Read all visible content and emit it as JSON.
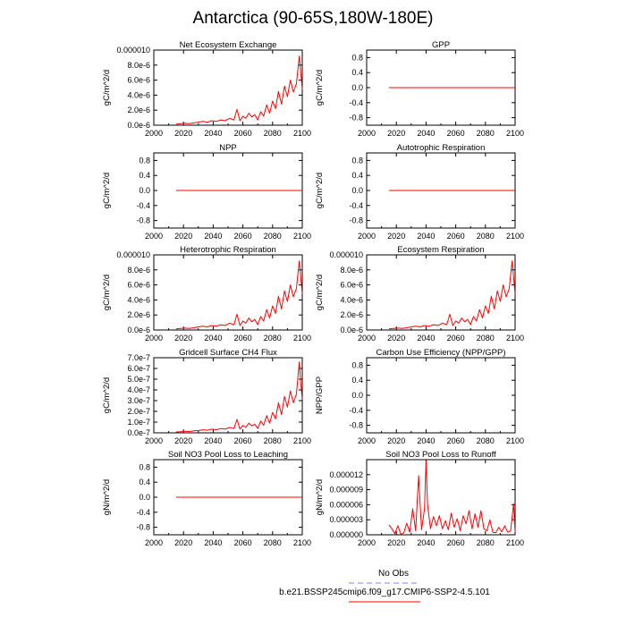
{
  "title": "Antarctica (90-65S,180W-180E)",
  "legend": {
    "obs_label": "No Obs",
    "obs_color": "#8080ff",
    "run_label": "b.e21.BSSP245cmip6.f09_g17.CMIP6-SSP2-4.5.101",
    "run_color": "#ff0000"
  },
  "chart_data": [
    {
      "type": "line",
      "title": "Net Ecosystem Exchange",
      "ylabel": "gC/m^2/d",
      "xlim": [
        2000,
        2100
      ],
      "xticks": [
        "2000",
        "2020",
        "2040",
        "2060",
        "2080",
        "2100"
      ],
      "ylim": [
        0,
        1e-05
      ],
      "yticks": [
        {
          "v": 0,
          "l": "0.0e-6"
        },
        {
          "v": 2e-06,
          "l": "2.0e-6"
        },
        {
          "v": 4e-06,
          "l": "4.0e-6"
        },
        {
          "v": 6e-06,
          "l": "6.0e-6"
        },
        {
          "v": 8e-06,
          "l": "8.0e-6"
        },
        {
          "v": 1e-05,
          "l": "0.000010"
        }
      ],
      "series": [
        {
          "name": "b.e21.BSSP245cmip6.f09_g17.CMIP6-SSP2-4.5.101",
          "x": [
            2015,
            2018,
            2021,
            2024,
            2027,
            2030,
            2033,
            2036,
            2039,
            2042,
            2045,
            2048,
            2051,
            2054,
            2056,
            2058,
            2060,
            2062,
            2064,
            2066,
            2068,
            2070,
            2072,
            2074,
            2076,
            2078,
            2080,
            2082,
            2084,
            2086,
            2088,
            2090,
            2092,
            2094,
            2096,
            2098,
            2099,
            2100
          ],
          "y": [
            1.5e-07,
            2e-07,
            2.5e-07,
            2e-07,
            3e-07,
            4e-07,
            5e-07,
            4e-07,
            6e-07,
            5e-07,
            7e-07,
            6e-07,
            9e-07,
            7e-07,
            2.1e-06,
            6e-07,
            1.2e-06,
            9e-07,
            1.6e-06,
            1.1e-06,
            1.4e-06,
            7e-07,
            1.8e-06,
            1.2e-06,
            2.7e-06,
            1.6e-06,
            3.2e-06,
            2.2e-06,
            4.5e-06,
            2.8e-06,
            5.2e-06,
            3.8e-06,
            6e-06,
            4.4e-06,
            5.5e-06,
            9.2e-06,
            7e-06,
            4.8e-06
          ]
        }
      ]
    },
    {
      "type": "line",
      "title": "GPP",
      "ylabel": "gC/m^2/d",
      "xlim": [
        2000,
        2100
      ],
      "xticks": [
        "2000",
        "2020",
        "2040",
        "2060",
        "2080",
        "2100"
      ],
      "ylim": [
        -1,
        1
      ],
      "yticks": [
        {
          "v": -0.8,
          "l": "-0.8"
        },
        {
          "v": -0.4,
          "l": "-0.4"
        },
        {
          "v": 0,
          "l": "0.0"
        },
        {
          "v": 0.4,
          "l": "0.4"
        },
        {
          "v": 0.8,
          "l": "0.8"
        }
      ],
      "series": [
        {
          "name": "b.e21.BSSP245cmip6.f09_g17.CMIP6-SSP2-4.5.101",
          "x": [
            2015,
            2100
          ],
          "y": [
            0,
            0
          ]
        }
      ]
    },
    {
      "type": "line",
      "title": "NPP",
      "ylabel": "gC/m^2/d",
      "xlim": [
        2000,
        2100
      ],
      "xticks": [
        "2000",
        "2020",
        "2040",
        "2060",
        "2080",
        "2100"
      ],
      "ylim": [
        -1,
        1
      ],
      "yticks": [
        {
          "v": -0.8,
          "l": "-0.8"
        },
        {
          "v": -0.4,
          "l": "-0.4"
        },
        {
          "v": 0,
          "l": "0.0"
        },
        {
          "v": 0.4,
          "l": "0.4"
        },
        {
          "v": 0.8,
          "l": "0.8"
        }
      ],
      "series": [
        {
          "name": "b.e21.BSSP245cmip6.f09_g17.CMIP6-SSP2-4.5.101",
          "x": [
            2015,
            2100
          ],
          "y": [
            0,
            0
          ]
        }
      ]
    },
    {
      "type": "line",
      "title": "Autotrophic Respiration",
      "ylabel": "gC/m^2/d",
      "xlim": [
        2000,
        2100
      ],
      "xticks": [
        "2000",
        "2020",
        "2040",
        "2060",
        "2080",
        "2100"
      ],
      "ylim": [
        -1,
        1
      ],
      "yticks": [
        {
          "v": -0.8,
          "l": "-0.8"
        },
        {
          "v": -0.4,
          "l": "-0.4"
        },
        {
          "v": 0,
          "l": "0.0"
        },
        {
          "v": 0.4,
          "l": "0.4"
        },
        {
          "v": 0.8,
          "l": "0.8"
        }
      ],
      "series": [
        {
          "name": "b.e21.BSSP245cmip6.f09_g17.CMIP6-SSP2-4.5.101",
          "x": [
            2015,
            2100
          ],
          "y": [
            0,
            0
          ]
        }
      ]
    },
    {
      "type": "line",
      "title": "Heterotrophic Respiration",
      "ylabel": "gC/m^2/d",
      "xlim": [
        2000,
        2100
      ],
      "xticks": [
        "2000",
        "2020",
        "2040",
        "2060",
        "2080",
        "2100"
      ],
      "ylim": [
        0,
        1e-05
      ],
      "yticks": [
        {
          "v": 0,
          "l": "0.0e-6"
        },
        {
          "v": 2e-06,
          "l": "2.0e-6"
        },
        {
          "v": 4e-06,
          "l": "4.0e-6"
        },
        {
          "v": 6e-06,
          "l": "6.0e-6"
        },
        {
          "v": 8e-06,
          "l": "8.0e-6"
        },
        {
          "v": 1e-05,
          "l": "0.000010"
        }
      ],
      "series": [
        {
          "name": "b.e21.BSSP245cmip6.f09_g17.CMIP6-SSP2-4.5.101",
          "x": [
            2015,
            2018,
            2021,
            2024,
            2027,
            2030,
            2033,
            2036,
            2039,
            2042,
            2045,
            2048,
            2051,
            2054,
            2056,
            2058,
            2060,
            2062,
            2064,
            2066,
            2068,
            2070,
            2072,
            2074,
            2076,
            2078,
            2080,
            2082,
            2084,
            2086,
            2088,
            2090,
            2092,
            2094,
            2096,
            2098,
            2099,
            2100
          ],
          "y": [
            1.5e-07,
            2e-07,
            2.5e-07,
            2e-07,
            3e-07,
            4e-07,
            5e-07,
            4e-07,
            6e-07,
            5e-07,
            7e-07,
            6e-07,
            9e-07,
            7e-07,
            2.1e-06,
            6e-07,
            1.2e-06,
            9e-07,
            1.6e-06,
            1.1e-06,
            1.4e-06,
            7e-07,
            1.8e-06,
            1.2e-06,
            2.7e-06,
            1.6e-06,
            3.2e-06,
            2.2e-06,
            4.5e-06,
            2.8e-06,
            5.2e-06,
            3.8e-06,
            6e-06,
            4.4e-06,
            5.5e-06,
            9.2e-06,
            7e-06,
            4.8e-06
          ]
        }
      ]
    },
    {
      "type": "line",
      "title": "Ecosystem Respiration",
      "ylabel": "gC/m^2/d",
      "xlim": [
        2000,
        2100
      ],
      "xticks": [
        "2000",
        "2020",
        "2040",
        "2060",
        "2080",
        "2100"
      ],
      "ylim": [
        0,
        1e-05
      ],
      "yticks": [
        {
          "v": 0,
          "l": "0.0e-6"
        },
        {
          "v": 2e-06,
          "l": "2.0e-6"
        },
        {
          "v": 4e-06,
          "l": "4.0e-6"
        },
        {
          "v": 6e-06,
          "l": "6.0e-6"
        },
        {
          "v": 8e-06,
          "l": "8.0e-6"
        },
        {
          "v": 1e-05,
          "l": "0.000010"
        }
      ],
      "series": [
        {
          "name": "b.e21.BSSP245cmip6.f09_g17.CMIP6-SSP2-4.5.101",
          "x": [
            2015,
            2018,
            2021,
            2024,
            2027,
            2030,
            2033,
            2036,
            2039,
            2042,
            2045,
            2048,
            2051,
            2054,
            2056,
            2058,
            2060,
            2062,
            2064,
            2066,
            2068,
            2070,
            2072,
            2074,
            2076,
            2078,
            2080,
            2082,
            2084,
            2086,
            2088,
            2090,
            2092,
            2094,
            2096,
            2098,
            2099,
            2100
          ],
          "y": [
            1.5e-07,
            2e-07,
            2.5e-07,
            2e-07,
            3e-07,
            4e-07,
            5e-07,
            4e-07,
            6e-07,
            5e-07,
            7e-07,
            6e-07,
            9e-07,
            7e-07,
            2.1e-06,
            6e-07,
            1.2e-06,
            9e-07,
            1.6e-06,
            1.1e-06,
            1.4e-06,
            7e-07,
            1.8e-06,
            1.2e-06,
            2.7e-06,
            1.6e-06,
            3.2e-06,
            2.2e-06,
            4.5e-06,
            2.8e-06,
            5.2e-06,
            3.8e-06,
            6e-06,
            4.4e-06,
            5.5e-06,
            9.2e-06,
            7e-06,
            4.8e-06
          ]
        }
      ]
    },
    {
      "type": "line",
      "title": "Gridcell Surface CH4 Flux",
      "ylabel": "gC/m^2/d",
      "xlim": [
        2000,
        2100
      ],
      "xticks": [
        "2000",
        "2020",
        "2040",
        "2060",
        "2080",
        "2100"
      ],
      "ylim": [
        0,
        7e-07
      ],
      "yticks": [
        {
          "v": 0,
          "l": "0.0e-7"
        },
        {
          "v": 1e-07,
          "l": "1.0e-7"
        },
        {
          "v": 2e-07,
          "l": "2.0e-7"
        },
        {
          "v": 3e-07,
          "l": "3.0e-7"
        },
        {
          "v": 4e-07,
          "l": "4.0e-7"
        },
        {
          "v": 5e-07,
          "l": "5.0e-7"
        },
        {
          "v": 6e-07,
          "l": "6.0e-7"
        },
        {
          "v": 7e-07,
          "l": "7.0e-7"
        }
      ],
      "series": [
        {
          "name": "b.e21.BSSP245cmip6.f09_g17.CMIP6-SSP2-4.5.101",
          "x": [
            2015,
            2018,
            2021,
            2024,
            2027,
            2030,
            2033,
            2036,
            2039,
            2042,
            2045,
            2048,
            2051,
            2054,
            2056,
            2058,
            2060,
            2062,
            2064,
            2066,
            2068,
            2070,
            2072,
            2074,
            2076,
            2078,
            2080,
            2082,
            2084,
            2086,
            2088,
            2090,
            2092,
            2094,
            2096,
            2098,
            2099,
            2100
          ],
          "y": [
            8e-09,
            1e-08,
            1.4e-08,
            1.2e-08,
            1.8e-08,
            2.2e-08,
            2.8e-08,
            2.4e-08,
            3.4e-08,
            2.8e-08,
            4e-08,
            3.4e-08,
            5e-08,
            4e-08,
            1.25e-07,
            3.5e-08,
            7e-08,
            5e-08,
            9e-08,
            6.5e-08,
            8e-08,
            4e-08,
            1.1e-07,
            7e-08,
            1.6e-07,
            9e-08,
            1.9e-07,
            1.3e-07,
            2.8e-07,
            1.7e-07,
            3.4e-07,
            2.4e-07,
            3.9e-07,
            2.8e-07,
            3.6e-07,
            6.6e-07,
            4.6e-07,
            3.1e-07
          ]
        }
      ]
    },
    {
      "type": "line",
      "title": "Carbon Use Efficiency (NPP/GPP)",
      "ylabel": "NPP/GPP",
      "xlim": [
        2000,
        2100
      ],
      "xticks": [
        "2000",
        "2020",
        "2040",
        "2060",
        "2080",
        "2100"
      ],
      "ylim": [
        -1,
        1
      ],
      "yticks": [
        {
          "v": -0.8,
          "l": "-0.8"
        },
        {
          "v": -0.4,
          "l": "-0.4"
        },
        {
          "v": 0,
          "l": "0.0"
        },
        {
          "v": 0.4,
          "l": "0.4"
        },
        {
          "v": 0.8,
          "l": "0.8"
        }
      ],
      "series": []
    },
    {
      "type": "line",
      "title": "Soil NO3 Pool Loss to Leaching",
      "ylabel": "gN/m^2/d",
      "xlim": [
        2000,
        2100
      ],
      "xticks": [
        "2000",
        "2020",
        "2040",
        "2060",
        "2080",
        "2100"
      ],
      "ylim": [
        -1,
        1
      ],
      "yticks": [
        {
          "v": -0.8,
          "l": "-0.8"
        },
        {
          "v": -0.4,
          "l": "-0.4"
        },
        {
          "v": 0,
          "l": "0.0"
        },
        {
          "v": 0.4,
          "l": "0.4"
        },
        {
          "v": 0.8,
          "l": "0.8"
        }
      ],
      "series": [
        {
          "name": "b.e21.BSSP245cmip6.f09_g17.CMIP6-SSP2-4.5.101",
          "x": [
            2015,
            2100
          ],
          "y": [
            0,
            0
          ]
        }
      ]
    },
    {
      "type": "line",
      "title": "Soil NO3 Pool Loss to Runoff",
      "ylabel": "gN/m^2/d",
      "xlim": [
        2000,
        2100
      ],
      "xticks": [
        "2000",
        "2020",
        "2040",
        "2060",
        "2080",
        "2100"
      ],
      "ylim": [
        0,
        1.5e-05
      ],
      "yticks": [
        {
          "v": 0,
          "l": "0.000000"
        },
        {
          "v": 3e-06,
          "l": "0.000003"
        },
        {
          "v": 6e-06,
          "l": "0.000006"
        },
        {
          "v": 9e-06,
          "l": "0.000009"
        },
        {
          "v": 1.2e-05,
          "l": "0.000012"
        }
      ],
      "series": [
        {
          "name": "b.e21.BSSP245cmip6.f09_g17.CMIP6-SSP2-4.5.101",
          "x": [
            2015,
            2017,
            2019,
            2021,
            2023,
            2025,
            2027,
            2029,
            2031,
            2033,
            2035,
            2037,
            2039,
            2040,
            2041,
            2043,
            2045,
            2047,
            2049,
            2051,
            2053,
            2055,
            2057,
            2059,
            2061,
            2063,
            2065,
            2067,
            2069,
            2071,
            2073,
            2075,
            2077,
            2079,
            2081,
            2083,
            2085,
            2087,
            2089,
            2091,
            2093,
            2095,
            2097,
            2099,
            2100
          ],
          "y": [
            2e-06,
            1.2e-06,
            2e-07,
            1.8e-06,
            1e-07,
            4e-07,
            2.3e-06,
            5e-07,
            5.2e-06,
            8e-07,
            1.18e-05,
            1e-06,
            5.2e-06,
            1.48e-05,
            6e-06,
            1.2e-06,
            3.6e-06,
            1.8e-06,
            3.8e-06,
            1.2e-06,
            2.8e-06,
            1e-06,
            4.3e-06,
            1.5e-06,
            3.2e-06,
            8e-07,
            3.8e-06,
            2.2e-06,
            4.8e-06,
            1.2e-06,
            4.2e-06,
            1.5e-06,
            4.8e-06,
            1.2e-06,
            8e-07,
            3e-06,
            5e-07,
            4e-07,
            1.5e-06,
            6e-07,
            1.8e-06,
            5e-07,
            8e-07,
            6.2e-06,
            5e-07
          ]
        }
      ]
    }
  ]
}
